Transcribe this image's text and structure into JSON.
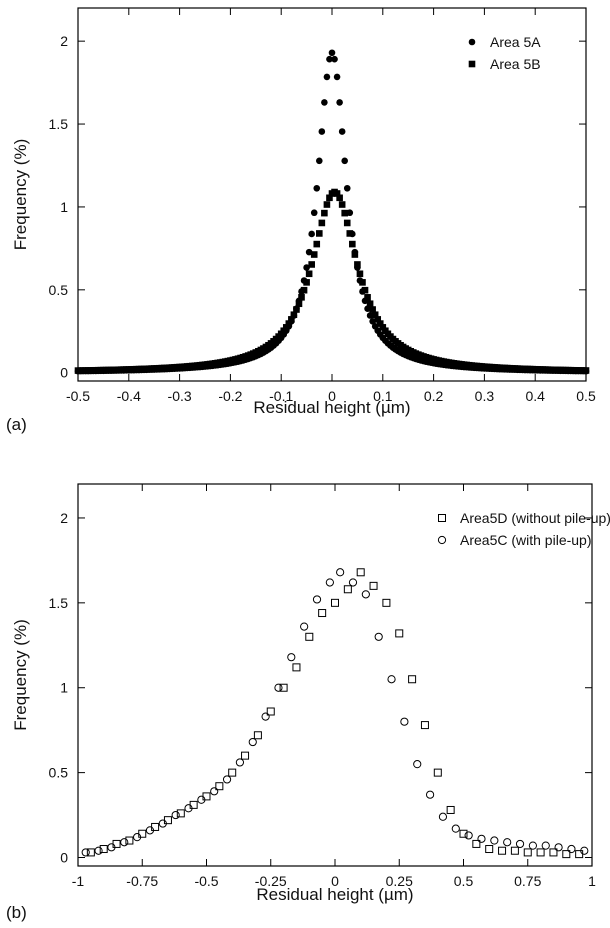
{
  "figure": {
    "panels": [
      "(a)",
      "(b)"
    ]
  },
  "chart_data": [
    {
      "type": "scatter",
      "panel_label": "(a)",
      "xlabel": "Residual height (µm)",
      "ylabel": "Frequency (%)",
      "xlim": [
        -0.5,
        0.5
      ],
      "ylim": [
        -0.05,
        2.2
      ],
      "xticks": [
        -0.5,
        -0.4,
        -0.3,
        -0.2,
        -0.1,
        0,
        0.1,
        0.2,
        0.3,
        0.4,
        0.5
      ],
      "xtick_labels": [
        "-0.5",
        "-0.4",
        "-0.3",
        "-0.2",
        "-0.1",
        "0",
        "0.1",
        "0.2",
        "0.3",
        "0.4",
        "0.5"
      ],
      "yticks": [
        0,
        0.5,
        1,
        1.5,
        2
      ],
      "ytick_labels": [
        "0",
        "0.5",
        "1",
        "1.5",
        "2"
      ],
      "grid": false,
      "legend_position": "top-right",
      "series": [
        {
          "name": "Area 5A",
          "marker": "filled-circle",
          "shape": "lorentzian",
          "amplitude": 1.93,
          "center": 0.0,
          "hwhm": 0.035,
          "x_range": [
            -0.5,
            0.5
          ],
          "step": 0.005
        },
        {
          "name": "Area 5B",
          "marker": "filled-square",
          "shape": "lorentzian",
          "amplitude": 1.09,
          "center": 0.005,
          "hwhm": 0.055,
          "x_range": [
            -0.5,
            0.5
          ],
          "step": 0.005
        }
      ]
    },
    {
      "type": "scatter",
      "panel_label": "(b)",
      "xlabel": "Residual height (µm)",
      "ylabel": "Frequency (%)",
      "xlim": [
        -1,
        1
      ],
      "ylim": [
        -0.05,
        2.2
      ],
      "xticks": [
        -1,
        -0.75,
        -0.5,
        -0.25,
        0,
        0.25,
        0.5,
        0.75,
        1
      ],
      "xtick_labels": [
        "-1",
        "-0.75",
        "-0.5",
        "-0.25",
        "0",
        "0.25",
        "0.5",
        "0.75",
        "1"
      ],
      "yticks": [
        0,
        0.5,
        1,
        1.5,
        2
      ],
      "ytick_labels": [
        "0",
        "0.5",
        "1",
        "1.5",
        "2"
      ],
      "grid": false,
      "legend_position": "top-right",
      "series": [
        {
          "name": "Area5D (without pile-up)",
          "marker": "open-square",
          "x": [
            -0.95,
            -0.9,
            -0.85,
            -0.8,
            -0.75,
            -0.7,
            -0.65,
            -0.6,
            -0.55,
            -0.5,
            -0.45,
            -0.4,
            -0.35,
            -0.3,
            -0.25,
            -0.2,
            -0.15,
            -0.1,
            -0.05,
            0,
            0.05,
            0.1,
            0.15,
            0.2,
            0.25,
            0.3,
            0.35,
            0.4,
            0.45,
            0.5,
            0.55,
            0.6,
            0.65,
            0.7,
            0.75,
            0.8,
            0.85,
            0.9,
            0.95
          ],
          "y": [
            0.03,
            0.05,
            0.08,
            0.1,
            0.14,
            0.18,
            0.22,
            0.26,
            0.31,
            0.36,
            0.42,
            0.5,
            0.6,
            0.72,
            0.86,
            1.0,
            1.12,
            1.3,
            1.44,
            1.5,
            1.58,
            1.68,
            1.6,
            1.5,
            1.32,
            1.05,
            0.78,
            0.5,
            0.28,
            0.14,
            0.08,
            0.05,
            0.04,
            0.04,
            0.03,
            0.03,
            0.03,
            0.02,
            0.02
          ]
        },
        {
          "name": "Area5C (with pile-up)",
          "marker": "open-circle",
          "x": [
            -0.97,
            -0.92,
            -0.87,
            -0.82,
            -0.77,
            -0.72,
            -0.67,
            -0.62,
            -0.57,
            -0.52,
            -0.47,
            -0.42,
            -0.37,
            -0.32,
            -0.27,
            -0.22,
            -0.17,
            -0.12,
            -0.07,
            -0.02,
            0.02,
            0.07,
            0.12,
            0.17,
            0.22,
            0.27,
            0.32,
            0.37,
            0.42,
            0.47,
            0.52,
            0.57,
            0.62,
            0.67,
            0.72,
            0.77,
            0.82,
            0.87,
            0.92,
            0.97
          ],
          "y": [
            0.03,
            0.04,
            0.06,
            0.09,
            0.12,
            0.16,
            0.2,
            0.25,
            0.29,
            0.34,
            0.39,
            0.46,
            0.56,
            0.68,
            0.83,
            1.0,
            1.18,
            1.36,
            1.52,
            1.62,
            1.68,
            1.62,
            1.55,
            1.3,
            1.05,
            0.8,
            0.55,
            0.37,
            0.24,
            0.17,
            0.13,
            0.11,
            0.1,
            0.09,
            0.08,
            0.07,
            0.07,
            0.06,
            0.05,
            0.04
          ]
        }
      ]
    }
  ]
}
